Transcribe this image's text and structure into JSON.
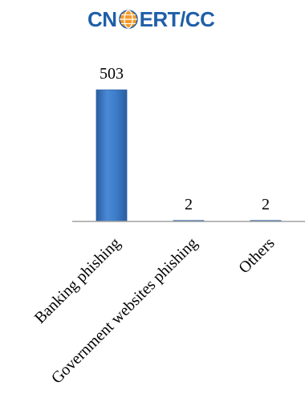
{
  "logo": {
    "prefix": "CN",
    "suffix": "ERT/CC",
    "icon": "globe-icon"
  },
  "chart_data": {
    "type": "bar",
    "categories": [
      "Banking phishing",
      "Government websites phishing",
      "Others"
    ],
    "values": [
      503,
      2,
      2
    ],
    "title": "",
    "xlabel": "",
    "ylabel": "",
    "ylim": [
      0,
      503
    ],
    "grid": false,
    "legend": "none",
    "colors": {
      "bar": "#3d7cc9",
      "bar_dark": "#2a5d9f",
      "bar_light": "#6fa2df",
      "axis": "#a0a0a0"
    }
  }
}
